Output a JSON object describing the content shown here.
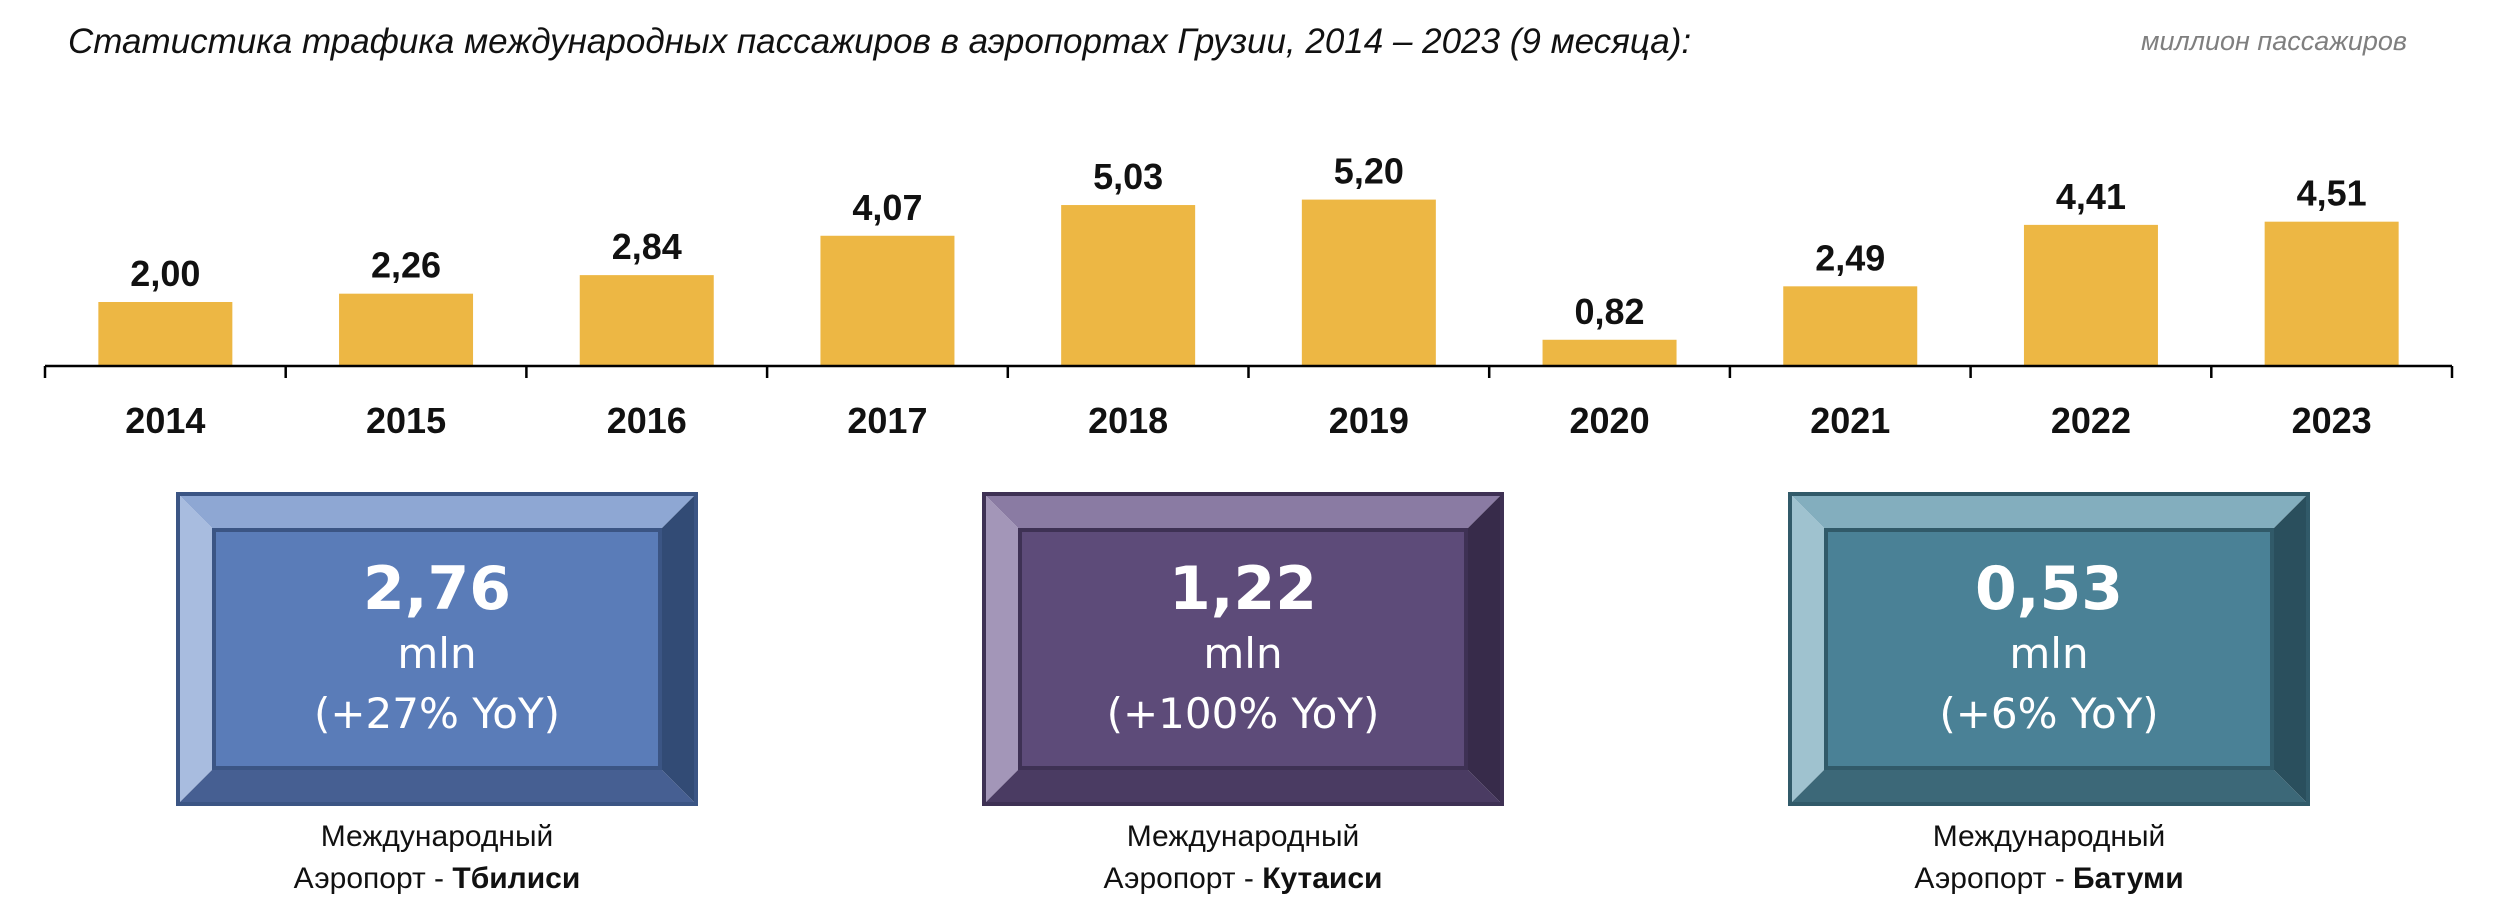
{
  "header": {
    "title": "Статистика трафика международных пассажиров в аэропортах Грузии, 2014 – 2023 (9 месяца):",
    "unit": "миллион пассажиров"
  },
  "chart_data": {
    "type": "bar",
    "categories": [
      "2014",
      "2015",
      "2016",
      "2017",
      "2018",
      "2019",
      "2020",
      "2021",
      "2022",
      "2023"
    ],
    "values": [
      2.0,
      2.26,
      2.84,
      4.07,
      5.03,
      5.2,
      0.82,
      2.49,
      4.41,
      4.51
    ],
    "value_labels": [
      "2,00",
      "2,26",
      "2,84",
      "4,07",
      "5,03",
      "5,20",
      "0,82",
      "2,49",
      "4,41",
      "4,51"
    ],
    "title": "Статистика трафика международных пассажиров в аэропортах Грузии, 2014 – 2023 (9 месяца):",
    "ylabel": "миллион пассажиров",
    "ylim": [
      0,
      5.5
    ],
    "grid": false,
    "bar_color": "#EDB744"
  },
  "airports": [
    {
      "value": "2,76",
      "unit": "mln",
      "yoy": "(+27% YoY)",
      "caption_line1": "Международный",
      "caption_prefix": "Аэропорт - ",
      "caption_city": "Тбилиси",
      "colors": {
        "face": "#5A7CB8",
        "top": "#8EA7D3",
        "left": "#A8BCDF",
        "right": "#324B75",
        "bottom": "#465F92",
        "border": "#3B5584"
      }
    },
    {
      "value": "1,22",
      "unit": "mln",
      "yoy": "(+100% YoY)",
      "caption_line1": "Международный",
      "caption_prefix": "Аэропорт - ",
      "caption_city": "Кутаиси",
      "colors": {
        "face": "#5D4B79",
        "top": "#8A7BA3",
        "left": "#A396B8",
        "right": "#372B4A",
        "bottom": "#4A3B62",
        "border": "#3E3154"
      }
    },
    {
      "value": "0,53",
      "unit": "mln",
      "yoy": "(+6% YoY)",
      "caption_line1": "Международный",
      "caption_prefix": "Аэропорт - ",
      "caption_city": "Батуми",
      "colors": {
        "face": "#4A8196",
        "top": "#83AEBE",
        "left": "#9FC2CF",
        "right": "#2A4F5D",
        "bottom": "#3C6878",
        "border": "#315A69"
      }
    }
  ]
}
